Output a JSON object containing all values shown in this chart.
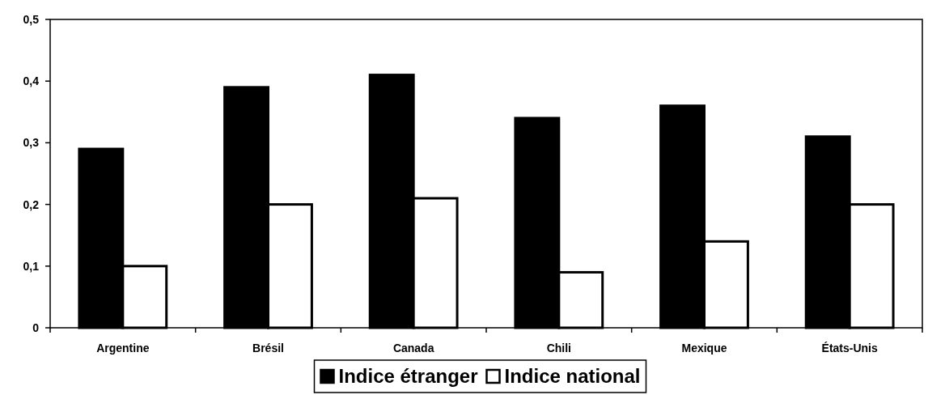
{
  "chart_data": {
    "type": "bar",
    "categories": [
      "Argentine",
      "Brésil",
      "Canada",
      "Chili",
      "Mexique",
      "États-Unis"
    ],
    "series": [
      {
        "name": "Indice étranger",
        "color": "#000000",
        "values": [
          0.29,
          0.39,
          0.41,
          0.34,
          0.36,
          0.31
        ]
      },
      {
        "name": "Indice national",
        "color": "#ffffff",
        "values": [
          0.1,
          0.2,
          0.21,
          0.09,
          0.14,
          0.2
        ]
      }
    ],
    "ylim": [
      0,
      0.5
    ],
    "yticks": [
      0,
      {
        "value": 0.1,
        "label": "0,1"
      },
      {
        "value": 0.2,
        "label": "0,2"
      },
      {
        "value": 0.3,
        "label": "0,3"
      },
      {
        "value": 0.4,
        "label": "0,4"
      },
      {
        "value": 0.5,
        "label": "0,5"
      }
    ],
    "grid": false,
    "legend": "bottom"
  }
}
